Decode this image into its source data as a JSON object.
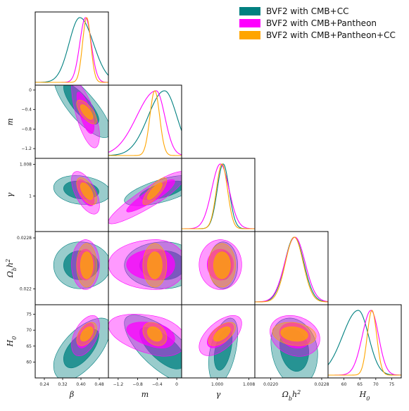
{
  "chart_data": {
    "type": "triangle",
    "parameters": [
      {
        "label": "β",
        "range": [
          0.2,
          0.52
        ],
        "ticks": [
          0.24,
          0.32,
          0.4,
          0.48
        ],
        "tick_labels": [
          "0.24",
          "0.32",
          "0.40",
          "0.48"
        ]
      },
      {
        "label": "m",
        "range": [
          -1.4,
          0.1
        ],
        "ticks": [
          -1.2,
          -0.8,
          -0.4,
          0.0
        ],
        "tick_labels": [
          "−1.2",
          "−0.8",
          "−0.4",
          "0"
        ]
      },
      {
        "label": "γ",
        "range": [
          0.991,
          1.0095
        ],
        "ticks": [
          1.0,
          1.008
        ],
        "tick_labels": [
          "1.000",
          "1.008"
        ]
      },
      {
        "label": "Ω_b h^2",
        "label_main": "Ω",
        "label_sub": "b",
        "label_h": "h",
        "label_sup": "2",
        "range": [
          0.02175,
          0.0229
        ],
        "ticks": [
          0.022,
          0.0228
        ],
        "tick_labels": [
          "0.0220",
          "0.0228"
        ]
      },
      {
        "label": "H_0",
        "label_main": "H",
        "label_sub": "0",
        "range": [
          55,
          78
        ],
        "ticks": [
          60,
          65,
          70,
          75
        ],
        "tick_labels": [
          "60",
          "65",
          "70",
          "75"
        ]
      }
    ],
    "left_axis_ticks": [
      {
        "row": 1,
        "ticks": [
          0.0,
          -0.4,
          -0.8,
          -1.2
        ],
        "tick_labels": [
          "0",
          "−0.4",
          "−0.8",
          "−1.2"
        ]
      },
      {
        "row": 2,
        "ticks": [
          1.008,
          1.0
        ],
        "tick_labels": [
          "1.008",
          "1"
        ]
      },
      {
        "row": 3,
        "ticks": [
          0.0228,
          0.022
        ],
        "tick_labels": [
          "0.0228",
          "0.022"
        ]
      },
      {
        "row": 4,
        "ticks": [
          75,
          70,
          65,
          60
        ],
        "tick_labels": [
          "75",
          "70",
          "65",
          "60"
        ]
      }
    ],
    "series": [
      {
        "name": "BVF2 with CMB+CC",
        "color": "#008080",
        "mean": [
          0.395,
          -0.25,
          1.0015,
          0.02237,
          64.5
        ],
        "sigma": [
          0.055,
          0.28,
          0.0015,
          0.00015,
          3.8
        ],
        "skew": [
          -0.15,
          0.2,
          0.0,
          0.0,
          0.3
        ],
        "corr": [
          [
            0,
            1,
            -0.85
          ],
          [
            0,
            2,
            -0.2
          ],
          [
            0,
            4,
            0.7
          ],
          [
            1,
            2,
            0.6
          ],
          [
            1,
            4,
            -0.7
          ],
          [
            2,
            4,
            0.5
          ],
          [
            3,
            4,
            -0.2
          ]
        ]
      },
      {
        "name": "BVF2 with CMB+Pantheon",
        "color": "#ff00ff",
        "mean": [
          0.42,
          -0.42,
          1.0008,
          0.02238,
          68.5
        ],
        "sigma": [
          0.025,
          0.25,
          0.0022,
          0.00016,
          2.5
        ],
        "skew": [
          0.0,
          0.6,
          0.0,
          0.0,
          0.1
        ],
        "corr": [
          [
            0,
            1,
            -0.8
          ],
          [
            0,
            2,
            -0.6
          ],
          [
            0,
            4,
            0.5
          ],
          [
            1,
            2,
            0.85
          ],
          [
            1,
            4,
            -0.3
          ],
          [
            2,
            4,
            0.6
          ],
          [
            3,
            4,
            -0.2
          ]
        ]
      },
      {
        "name": "BVF2 with CMB+Pantheon+CC",
        "color": "#ffa500",
        "mean": [
          0.425,
          -0.45,
          1.0012,
          0.02237,
          68.8
        ],
        "sigma": [
          0.018,
          0.1,
          0.0014,
          0.00014,
          1.5
        ],
        "skew": [
          0.0,
          0.0,
          0.0,
          0.0,
          0.0
        ],
        "corr": [
          [
            0,
            1,
            -0.7
          ],
          [
            0,
            2,
            -0.6
          ],
          [
            0,
            4,
            0.5
          ],
          [
            1,
            2,
            0.8
          ],
          [
            1,
            4,
            -0.3
          ],
          [
            2,
            4,
            0.6
          ],
          [
            3,
            4,
            -0.2
          ]
        ]
      }
    ],
    "legend": {
      "position": "top-right"
    },
    "contour_levels": [
      "68%",
      "95%"
    ]
  }
}
